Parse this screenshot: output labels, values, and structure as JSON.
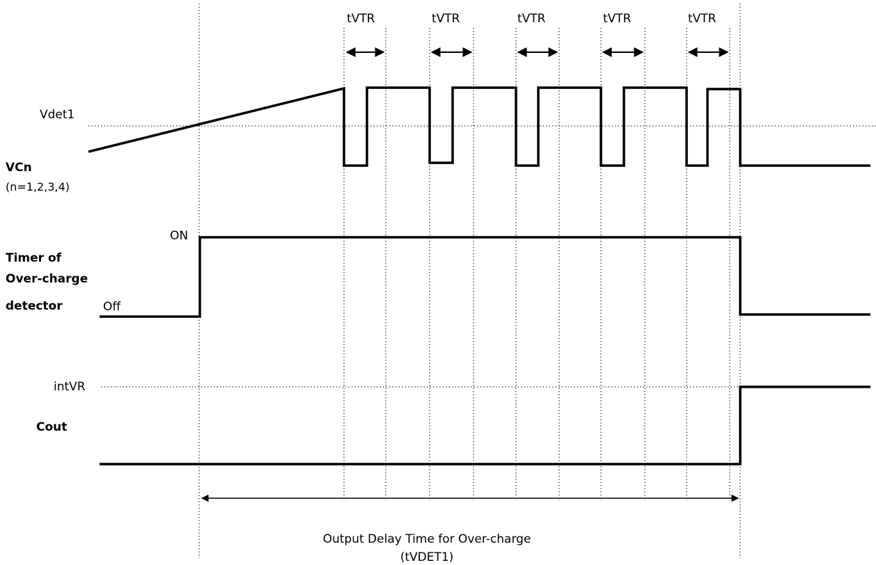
{
  "labels": {
    "tvtr": [
      "tVTR",
      "tVTR",
      "tVTR",
      "tVTR",
      "tVTR"
    ],
    "vdet1": "Vdet1",
    "vcn": "VCn",
    "vcn_sub": "(n=1,2,3,4)",
    "on": "ON",
    "off": "Off",
    "timer_line1": "Timer of",
    "timer_line2": "Over-charge",
    "timer_line3": "detector",
    "intvr": "intVR",
    "cout": "Cout",
    "delay_line1": "Output Delay Time for Over-charge",
    "delay_line2": "(tVDET1)"
  },
  "colors": {
    "line": "#000000",
    "background": "#ffffff"
  }
}
